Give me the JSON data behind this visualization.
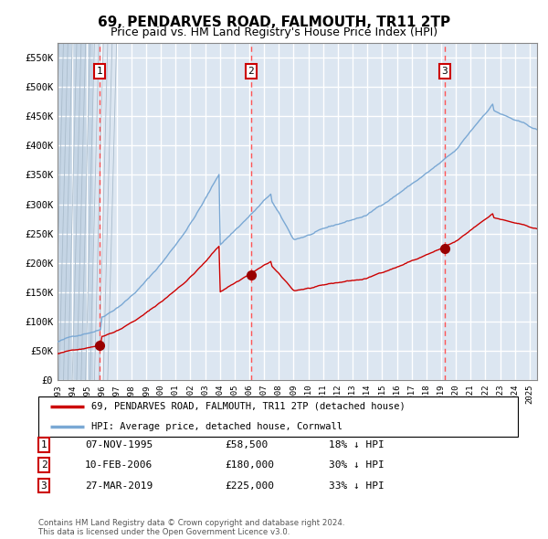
{
  "title": "69, PENDARVES ROAD, FALMOUTH, TR11 2TP",
  "subtitle": "Price paid vs. HM Land Registry's House Price Index (HPI)",
  "title_fontsize": 11,
  "subtitle_fontsize": 9,
  "bg_color": "#dce6f1",
  "hatch_color": "#c5d5e5",
  "grid_color": "#ffffff",
  "red_line_color": "#cc0000",
  "blue_line_color": "#7aa8d4",
  "dashed_line_color": "#ff5555",
  "marker_color": "#990000",
  "ylim": [
    0,
    575000
  ],
  "yticks": [
    0,
    50000,
    100000,
    150000,
    200000,
    250000,
    300000,
    350000,
    400000,
    450000,
    500000,
    550000
  ],
  "ytick_labels": [
    "£0",
    "£50K",
    "£100K",
    "£150K",
    "£200K",
    "£250K",
    "£300K",
    "£350K",
    "£400K",
    "£450K",
    "£500K",
    "£550K"
  ],
  "sales": [
    {
      "date_num": 1995.85,
      "price": 58500,
      "label": "1"
    },
    {
      "date_num": 2006.11,
      "price": 180000,
      "label": "2"
    },
    {
      "date_num": 2019.23,
      "price": 225000,
      "label": "3"
    }
  ],
  "legend_entries": [
    {
      "color": "#cc0000",
      "label": "69, PENDARVES ROAD, FALMOUTH, TR11 2TP (detached house)"
    },
    {
      "color": "#7aa8d4",
      "label": "HPI: Average price, detached house, Cornwall"
    }
  ],
  "table_rows": [
    {
      "num": "1",
      "date": "07-NOV-1995",
      "price": "£58,500",
      "note": "18% ↓ HPI"
    },
    {
      "num": "2",
      "date": "10-FEB-2006",
      "price": "£180,000",
      "note": "30% ↓ HPI"
    },
    {
      "num": "3",
      "date": "27-MAR-2019",
      "price": "£225,000",
      "note": "33% ↓ HPI"
    }
  ],
  "footer": "Contains HM Land Registry data © Crown copyright and database right 2024.\nThis data is licensed under the Open Government Licence v3.0.",
  "xlim_start": 1993.0,
  "xlim_end": 2025.5
}
